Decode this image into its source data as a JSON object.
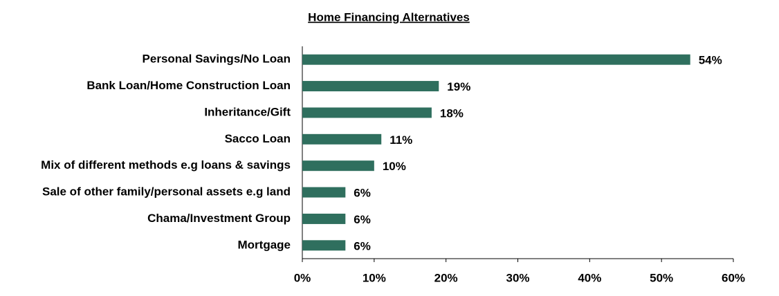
{
  "chart_data": {
    "type": "hbar",
    "title": "Home Financing Alternatives",
    "categories": [
      "Personal Savings/No Loan",
      "Bank Loan/Home Construction Loan",
      "Inheritance/Gift",
      "Sacco Loan",
      "Mix of different methods e.g loans & savings",
      "Sale of other family/personal assets e.g land",
      "Chama/Investment Group",
      "Mortgage"
    ],
    "values": [
      54,
      19,
      18,
      11,
      10,
      6,
      6,
      6
    ],
    "value_labels": [
      "54%",
      "19%",
      "18%",
      "11%",
      "10%",
      "6%",
      "6%",
      "6%"
    ],
    "color": "#2f6f5e",
    "xlim": [
      0,
      60
    ],
    "xticks": [
      {
        "value": 0,
        "label": "0%"
      },
      {
        "value": 10,
        "label": "10%"
      },
      {
        "value": 20,
        "label": "20%"
      },
      {
        "value": 30,
        "label": "30%"
      },
      {
        "value": 40,
        "label": "40%"
      },
      {
        "value": 50,
        "label": "50%"
      },
      {
        "value": 60,
        "label": "60%"
      }
    ],
    "grid": false
  }
}
